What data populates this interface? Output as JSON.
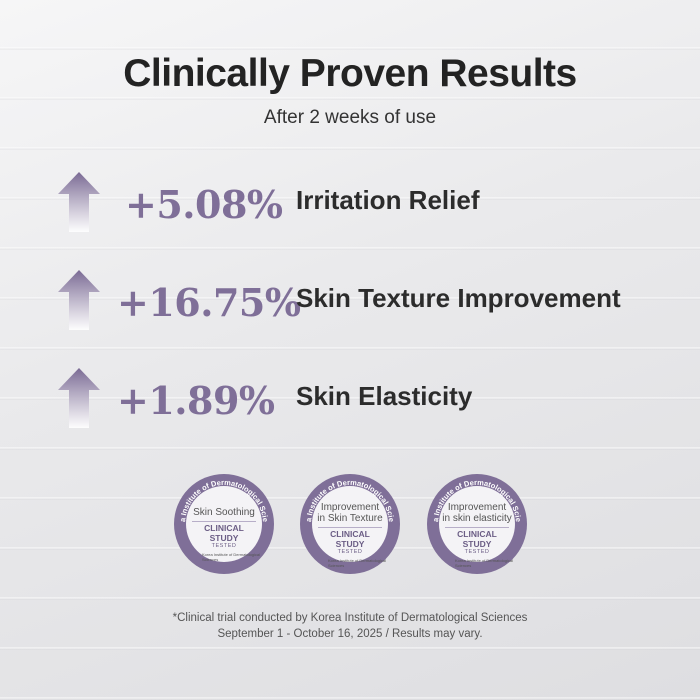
{
  "header": {
    "title": "Clinically Proven Results",
    "subtitle": "After 2 weeks of use"
  },
  "stats": [
    {
      "value": "+5.08%",
      "label": "Irritation Relief",
      "arrow_icon": "up-arrow-icon"
    },
    {
      "value": "+16.75%",
      "label": "Skin Texture Improvement",
      "arrow_icon": "up-arrow-icon"
    },
    {
      "value": "+1.89%",
      "label": "Skin Elasticity",
      "arrow_icon": "up-arrow-icon"
    }
  ],
  "badges": [
    {
      "ring_text": "Korea Institute of Dermatological Sciences",
      "name": "Skin Soothing",
      "study": "CLINICAL STUDY",
      "tested": "TESTED",
      "org": "Korea Institute of Dermatological Sciences"
    },
    {
      "ring_text": "Korea Institute of Dermatological Sciences",
      "name_line1": "Improvement",
      "name_line2": "in Skin Texture",
      "study": "CLINICAL STUDY",
      "tested": "TESTED",
      "org": "Korea Institute of Dermatological Sciences"
    },
    {
      "ring_text": "Korea Institute of Dermatological Sciences",
      "name_line1": "Improvement",
      "name_line2": "in skin elasticity",
      "study": "CLINICAL STUDY",
      "tested": "TESTED",
      "org": "Korea Institute of Dermatological Sciences"
    }
  ],
  "footnote": {
    "line1": "*Clinical trial conducted by Korea Institute of Dermatological Sciences",
    "line2": "September 1 - October 16, 2025 / Results may vary."
  },
  "colors": {
    "accent": "#7f6f98",
    "badge_ring": "#7f6f98",
    "text_dark": "#232323",
    "background": "#ececee"
  }
}
